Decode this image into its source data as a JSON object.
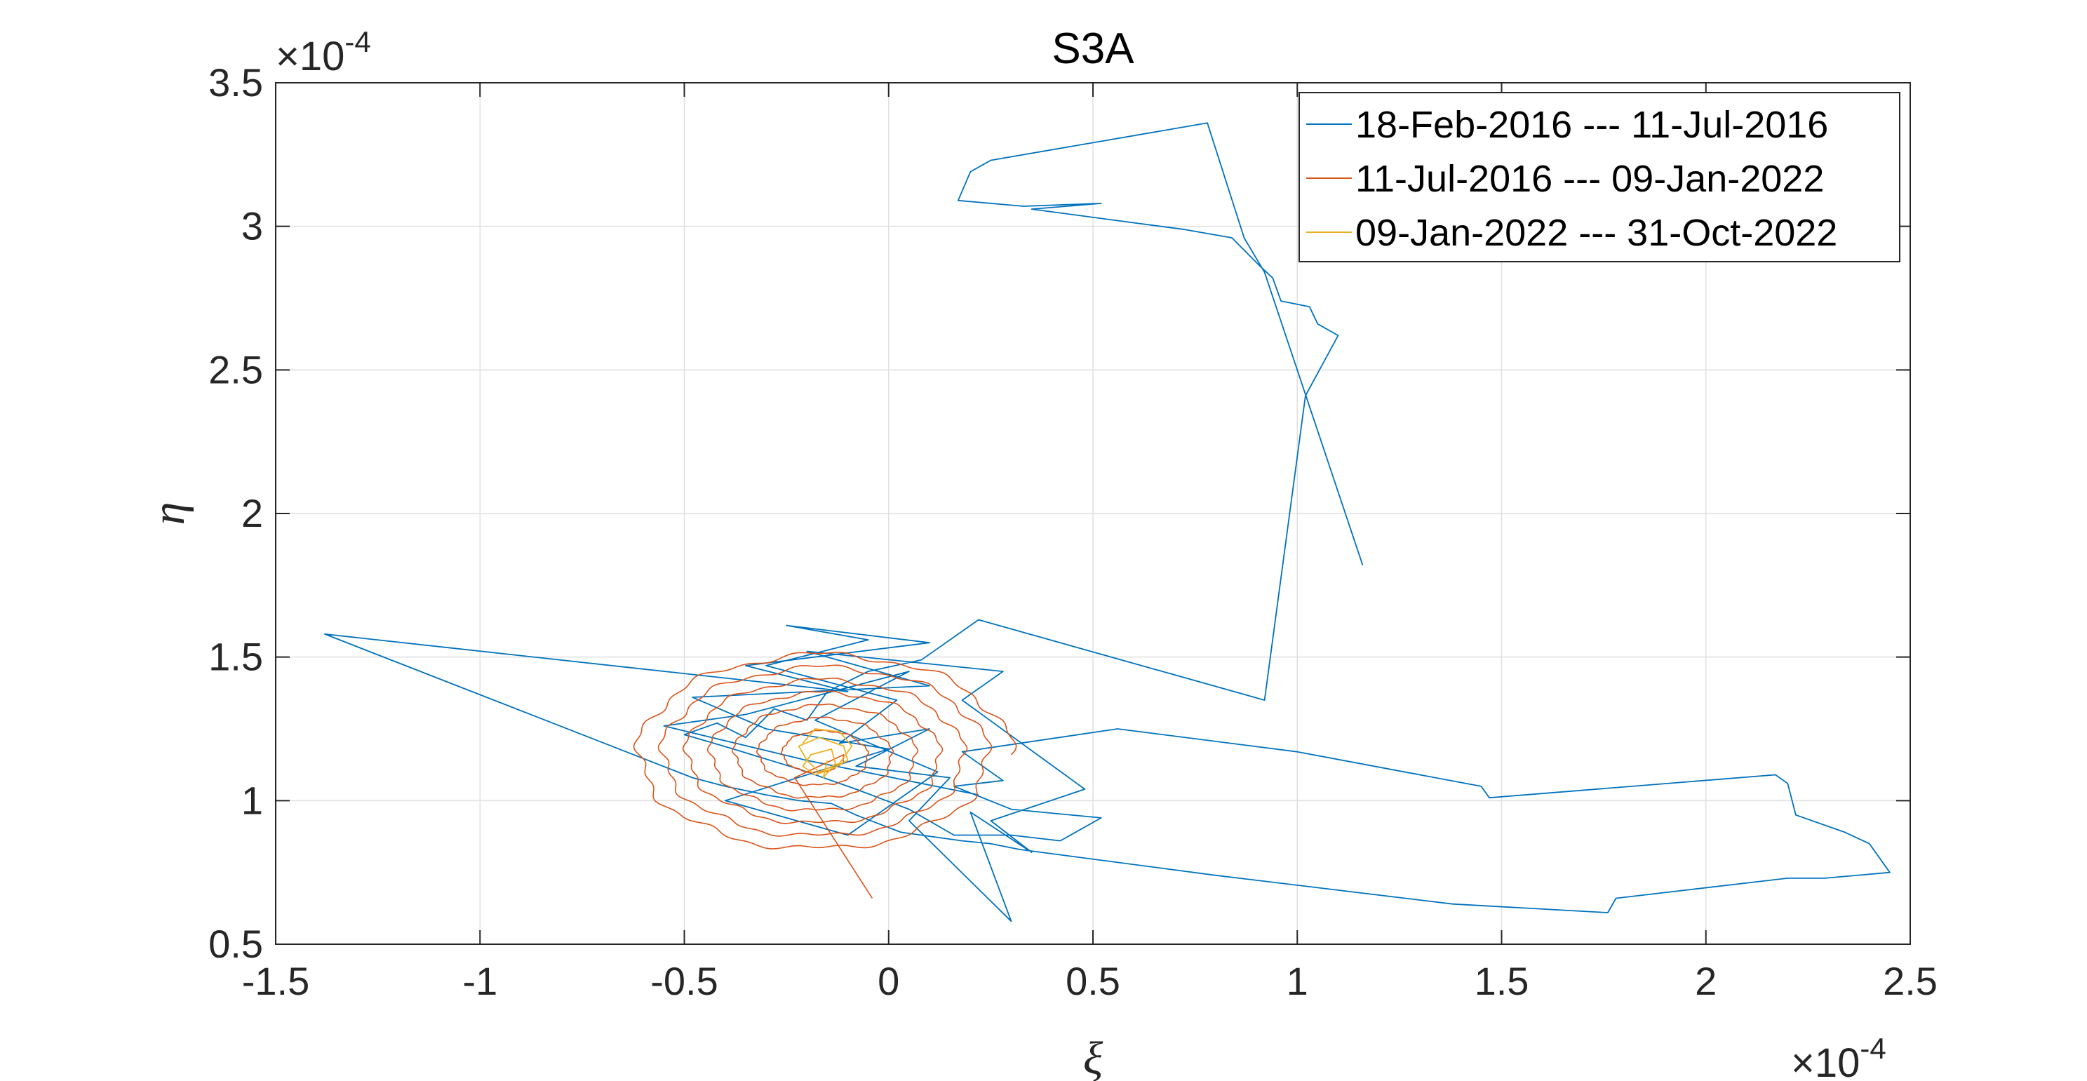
{
  "chart_data": {
    "type": "line",
    "title": "S3A",
    "xlabel": "ξ",
    "ylabel": "η",
    "x_multiplier": "×10",
    "x_multiplier_exp": "-4",
    "y_multiplier": "×10",
    "y_multiplier_exp": "-4",
    "xlim": [
      -1.5,
      2.5
    ],
    "ylim": [
      0.5,
      3.5
    ],
    "xticks": [
      -1.5,
      -1,
      -0.5,
      0,
      0.5,
      1,
      1.5,
      2,
      2.5
    ],
    "xtick_labels": [
      "-1.5",
      "-1",
      "-0.5",
      "0",
      "0.5",
      "1",
      "1.5",
      "2",
      "2.5"
    ],
    "yticks": [
      0.5,
      1,
      1.5,
      2,
      2.5,
      3,
      3.5
    ],
    "ytick_labels": [
      "0.5",
      "1",
      "1.5",
      "2",
      "2.5",
      "3",
      "3.5"
    ],
    "grid": true,
    "legend_position": "top-right",
    "series": [
      {
        "name": "18-Feb-2016 --- 11-Jul-2016",
        "color": "#0072BD",
        "points": [
          [
            1.16,
            1.82
          ],
          [
            0.92,
            2.84
          ],
          [
            0.87,
            2.96
          ],
          [
            0.78,
            3.36
          ],
          [
            0.25,
            3.23
          ],
          [
            0.2,
            3.19
          ],
          [
            0.17,
            3.09
          ],
          [
            0.33,
            3.07
          ],
          [
            0.52,
            3.08
          ],
          [
            0.35,
            3.06
          ],
          [
            0.56,
            3.02
          ],
          [
            0.72,
            2.99
          ],
          [
            0.84,
            2.96
          ],
          [
            0.91,
            2.86
          ],
          [
            0.94,
            2.82
          ],
          [
            0.96,
            2.74
          ],
          [
            1.03,
            2.72
          ],
          [
            1.05,
            2.66
          ],
          [
            1.1,
            2.62
          ],
          [
            1.02,
            2.41
          ],
          [
            0.92,
            1.35
          ],
          [
            0.22,
            1.63
          ],
          [
            0.08,
            1.49
          ],
          [
            -0.05,
            1.45
          ],
          [
            -0.15,
            1.38
          ],
          [
            -0.2,
            1.28
          ],
          [
            -0.28,
            1.32
          ],
          [
            -0.35,
            1.22
          ],
          [
            -0.42,
            1.27
          ],
          [
            -0.5,
            1.23
          ],
          [
            -0.38,
            1.18
          ],
          [
            -0.22,
            1.11
          ],
          [
            -0.08,
            1.04
          ],
          [
            0.05,
            0.97
          ],
          [
            0.16,
            0.88
          ],
          [
            0.3,
            0.88
          ],
          [
            0.42,
            0.86
          ],
          [
            0.52,
            0.94
          ],
          [
            0.3,
            0.97
          ],
          [
            0.16,
            1.05
          ],
          [
            0.28,
            1.07
          ],
          [
            0.18,
            1.17
          ],
          [
            0.56,
            1.25
          ],
          [
            1.0,
            1.17
          ],
          [
            1.45,
            1.05
          ],
          [
            1.47,
            1.01
          ],
          [
            2.17,
            1.09
          ],
          [
            2.2,
            1.06
          ],
          [
            2.22,
            0.95
          ],
          [
            2.34,
            0.89
          ],
          [
            2.4,
            0.85
          ],
          [
            2.45,
            0.75
          ],
          [
            2.29,
            0.73
          ],
          [
            2.2,
            0.73
          ],
          [
            1.78,
            0.66
          ],
          [
            1.76,
            0.61
          ],
          [
            1.38,
            0.64
          ],
          [
            0.8,
            0.74
          ],
          [
            0.32,
            0.83
          ],
          [
            0.25,
            0.85
          ],
          [
            0.18,
            0.86
          ],
          [
            0.08,
            0.88
          ],
          [
            0.03,
            0.89
          ],
          [
            -0.08,
            0.95
          ],
          [
            -0.14,
            0.99
          ],
          [
            -0.22,
            1.0
          ],
          [
            -0.3,
            1.02
          ],
          [
            -0.4,
            1.05
          ],
          [
            -0.48,
            1.08
          ],
          [
            -1.38,
            1.58
          ],
          [
            -0.1,
            1.38
          ],
          [
            -0.35,
            1.47
          ],
          [
            0.1,
            1.55
          ],
          [
            -0.25,
            1.61
          ],
          [
            -0.05,
            1.56
          ],
          [
            -0.3,
            1.47
          ],
          [
            0.02,
            1.35
          ],
          [
            -0.12,
            1.2
          ],
          [
            0.1,
            1.25
          ],
          [
            -0.08,
            1.12
          ],
          [
            0.15,
            1.08
          ],
          [
            0.05,
            0.93
          ],
          [
            0.3,
            0.58
          ],
          [
            0.2,
            0.96
          ],
          [
            0.35,
            0.82
          ],
          [
            0.25,
            0.93
          ],
          [
            0.48,
            1.04
          ],
          [
            0.18,
            1.35
          ],
          [
            0.28,
            1.45
          ],
          [
            -0.2,
            1.52
          ],
          [
            0.1,
            1.4
          ],
          [
            -0.48,
            1.36
          ],
          [
            -0.3,
            1.25
          ],
          [
            0.0,
            1.18
          ],
          [
            -0.4,
            1.0
          ],
          [
            -0.1,
            0.88
          ],
          [
            0.12,
            1.1
          ],
          [
            -0.18,
            1.28
          ],
          [
            0.05,
            1.45
          ],
          [
            -0.35,
            1.3
          ],
          [
            -0.55,
            1.26
          ],
          [
            -0.2,
            1.14
          ],
          [
            0.22,
            1.02
          ]
        ]
      },
      {
        "name": "11-Jul-2016 --- 09-Jan-2022",
        "color": "#D95319",
        "spiral": {
          "center": [
            -0.17,
            1.16
          ],
          "rx_start": 0.47,
          "rx_end": 0.06,
          "ry_start": 0.36,
          "ry_end": 0.05,
          "turns": 7,
          "end_segment": [
            [
              -0.23,
              1.08
            ],
            [
              -0.04,
              0.66
            ]
          ]
        }
      },
      {
        "name": "09-Jan-2022 --- 31-Oct-2022",
        "color": "#EDB120",
        "points": [
          [
            -0.21,
            1.2
          ],
          [
            -0.18,
            1.25
          ],
          [
            -0.12,
            1.24
          ],
          [
            -0.09,
            1.19
          ],
          [
            -0.12,
            1.13
          ],
          [
            -0.17,
            1.1
          ],
          [
            -0.2,
            1.14
          ],
          [
            -0.22,
            1.19
          ],
          [
            -0.17,
            1.22
          ],
          [
            -0.11,
            1.19
          ],
          [
            -0.1,
            1.14
          ],
          [
            -0.14,
            1.11
          ],
          [
            -0.18,
            1.09
          ],
          [
            -0.21,
            1.12
          ],
          [
            -0.19,
            1.16
          ],
          [
            -0.14,
            1.18
          ],
          [
            -0.13,
            1.13
          ],
          [
            -0.16,
            1.08
          ],
          [
            -0.15,
            1.14
          ]
        ]
      }
    ]
  }
}
